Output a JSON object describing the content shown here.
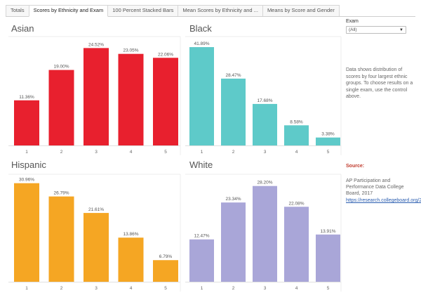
{
  "tabs": [
    {
      "label": "Totals"
    },
    {
      "label": "Scores by Ethnicity and Exam"
    },
    {
      "label": "100 Percent Stacked Bars"
    },
    {
      "label": "Mean Scores by Ethnicity and ..."
    },
    {
      "label": "Means by Score and Gender"
    }
  ],
  "active_tab": 1,
  "filter": {
    "label": "Exam",
    "value": "(All)"
  },
  "description": "Data shows distribution of scores by four largest ethnic groups. To choose results on a single exam, use the control above.",
  "source": {
    "label": "Source:",
    "text": "AP Participation and Performance Data College Board, 2017",
    "link": "https://research.collegeboard.org/2017"
  },
  "chart_data": [
    {
      "type": "bar",
      "title": "Asian",
      "categories": [
        "1",
        "2",
        "3",
        "4",
        "5"
      ],
      "values": [
        11.36,
        19.0,
        24.52,
        23.05,
        22.06
      ],
      "labels": [
        "11.36%",
        "19.00%",
        "24.52%",
        "23.05%",
        "22.06%"
      ],
      "color": "#e8202e",
      "ylim": [
        0,
        26
      ]
    },
    {
      "type": "bar",
      "title": "Black",
      "categories": [
        "1",
        "2",
        "3",
        "4",
        "5"
      ],
      "values": [
        41.89,
        28.47,
        17.68,
        8.58,
        3.38
      ],
      "labels": [
        "41.89%",
        "28.47%",
        "17.68%",
        "8.58%",
        "3.38%"
      ],
      "color": "#5ecac9",
      "ylim": [
        0,
        44
      ]
    },
    {
      "type": "bar",
      "title": "Hispanic",
      "categories": [
        "1",
        "2",
        "3",
        "4",
        "5"
      ],
      "values": [
        30.96,
        26.79,
        21.61,
        13.86,
        6.79
      ],
      "labels": [
        "30.96%",
        "26.79%",
        "21.61%",
        "13.86%",
        "6.79%"
      ],
      "color": "#f5a623",
      "ylim": [
        0,
        32
      ]
    },
    {
      "type": "bar",
      "title": "White",
      "categories": [
        "1",
        "2",
        "3",
        "4",
        "5"
      ],
      "values": [
        12.47,
        23.34,
        28.2,
        22.08,
        13.91
      ],
      "labels": [
        "12.47%",
        "23.34%",
        "28.20%",
        "22.08%",
        "13.91%"
      ],
      "color": "#a9a6d8",
      "ylim": [
        0,
        30
      ]
    }
  ]
}
